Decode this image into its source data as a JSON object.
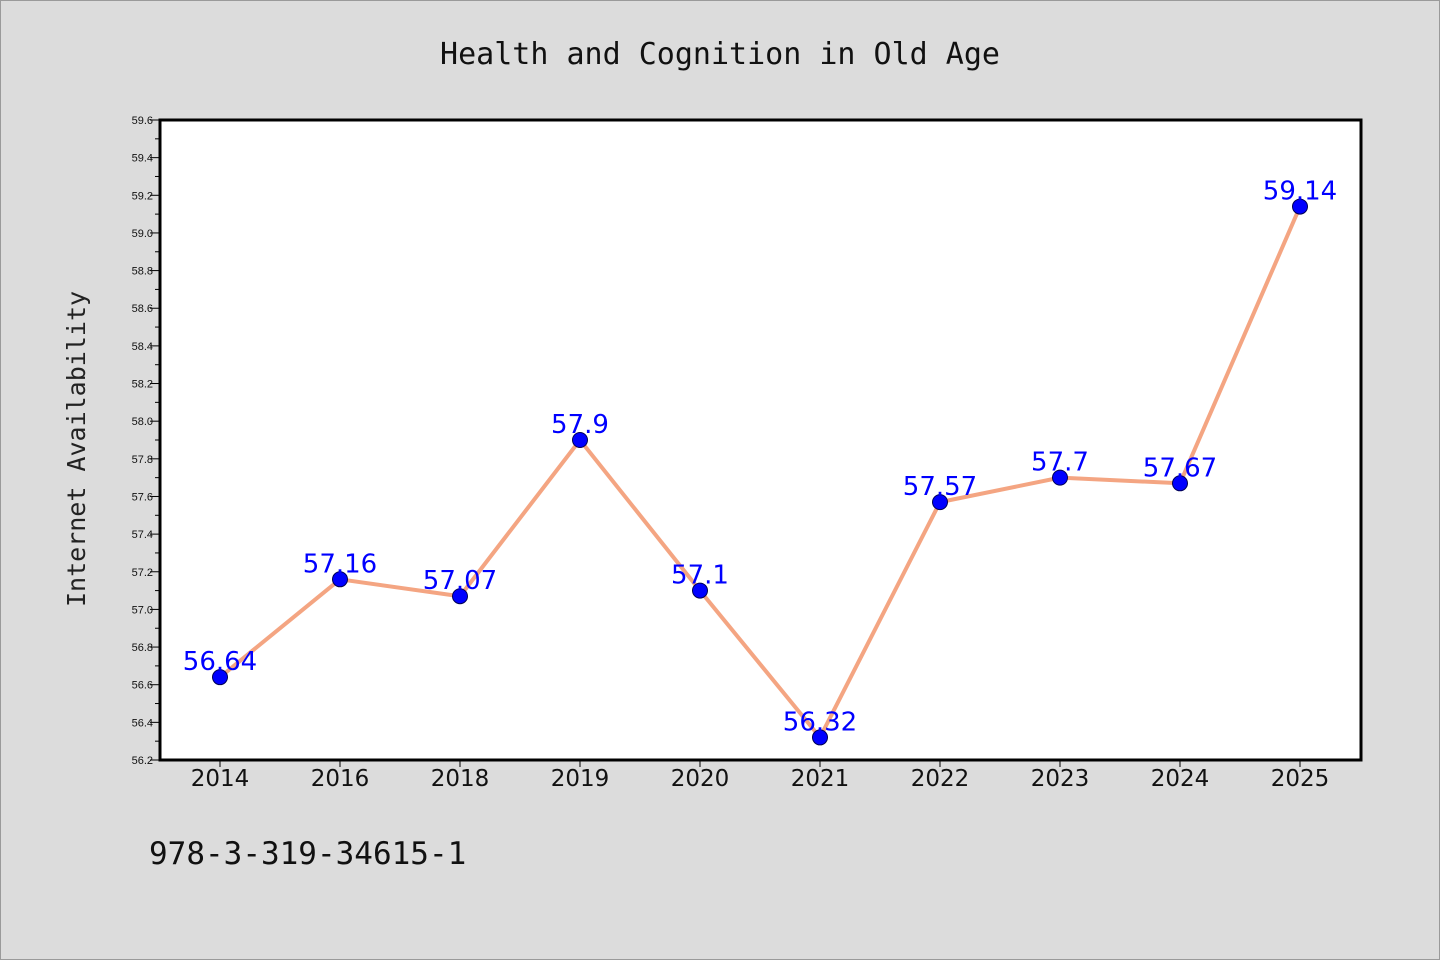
{
  "chart_data": {
    "type": "line",
    "title": "Health and Cognition in Old Age",
    "xlabel": "",
    "ylabel": "Internet Availability",
    "categories": [
      "2014",
      "2016",
      "2018",
      "2019",
      "2020",
      "2021",
      "2022",
      "2023",
      "2024",
      "2025"
    ],
    "series": [
      {
        "values": [
          56.64,
          57.16,
          57.07,
          57.9,
          57.1,
          56.32,
          57.57,
          57.7,
          57.67,
          59.14
        ],
        "data_labels": [
          "56.64",
          "57.16",
          "57.07",
          "57.9",
          "57.1",
          "56.32",
          "57.57",
          "57.7",
          "57.67",
          "59.14"
        ],
        "line_color": "#f4a582",
        "marker_color": "#0000ff"
      }
    ],
    "ylim": [
      56.2,
      59.6
    ],
    "yticks": [
      "56.2",
      "56.4",
      "56.6",
      "56.8",
      "57.0",
      "57.2",
      "57.4",
      "57.6",
      "57.8",
      "58.0",
      "58.2",
      "58.4",
      "58.6",
      "58.8",
      "59.0",
      "59.2",
      "59.4",
      "59.6"
    ],
    "grid": false,
    "legend": "none"
  },
  "footer": {
    "text": "978-3-319-34615-1"
  },
  "colors": {
    "figure_background": "#dcdcdc",
    "plot_background": "#ffffff",
    "axes_frame": "#000000",
    "data_label": "#0000ff"
  }
}
